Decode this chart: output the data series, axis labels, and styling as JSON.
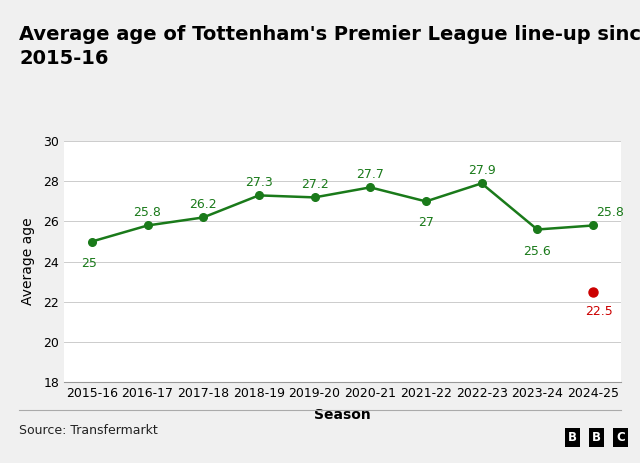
{
  "title_line1": "Average age of Tottenham's Premier League line-up since",
  "title_line2": "2015-16",
  "xlabel": "Season",
  "ylabel": "Average age",
  "seasons": [
    "2015-16",
    "2016-17",
    "2017-18",
    "2018-19",
    "2019-20",
    "2020-21",
    "2021-22",
    "2022-23",
    "2023-24",
    "2024-25"
  ],
  "values": [
    25.0,
    25.8,
    26.2,
    27.3,
    27.2,
    27.7,
    27.0,
    27.9,
    25.6,
    25.8
  ],
  "red_dot_value": 22.5,
  "red_dot_season": "2024-25",
  "line_color": "#1a7a1a",
  "dot_color": "#1a7a1a",
  "red_dot_color": "#cc0000",
  "background_color": "#f0f0f0",
  "plot_bg_color": "#ffffff",
  "ylim": [
    18,
    30
  ],
  "yticks": [
    18,
    20,
    22,
    24,
    26,
    28,
    30
  ],
  "source_text": "Source: Transfermarkt",
  "title_fontsize": 14,
  "axis_label_fontsize": 10,
  "tick_fontsize": 9,
  "annotation_fontsize": 9,
  "top_bar_color": "#e8c840"
}
